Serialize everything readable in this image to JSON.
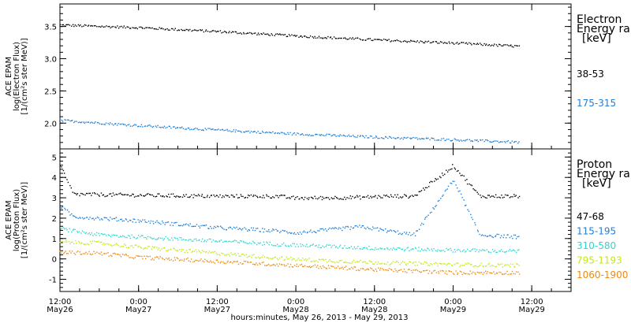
{
  "figure": {
    "x_axis_title": "hours:minutes, May 26, 2013 - May 29, 2013",
    "x_ticks": [
      {
        "hours": 0,
        "time": "12:00",
        "date": "May26"
      },
      {
        "hours": 12,
        "time": "0:00",
        "date": "May27"
      },
      {
        "hours": 24,
        "time": "12:00",
        "date": "May27"
      },
      {
        "hours": 36,
        "time": "0:00",
        "date": "May28"
      },
      {
        "hours": 48,
        "time": "12:00",
        "date": "May28"
      },
      {
        "hours": 60,
        "time": "0:00",
        "date": "May29"
      },
      {
        "hours": 72,
        "time": "12:00",
        "date": "May29"
      }
    ]
  },
  "chart_data": [
    {
      "type": "scatter",
      "ylabel": [
        "ACE EPAM",
        "log(Electron Flux)",
        "[1/(cm²s ster MeV)]"
      ],
      "legend_title": [
        "Electron",
        "Energy ran",
        "[keV]"
      ],
      "ylim": [
        1.6,
        3.85
      ],
      "yticks": [
        2.0,
        2.5,
        3.0,
        3.5
      ],
      "yticks_labels": [
        "2.0",
        "2.5",
        "3.0",
        "3.5"
      ],
      "xlim_hours": [
        0,
        78
      ],
      "series": [
        {
          "name": "38-53",
          "color": "#000000",
          "x_hours": [
            0,
            12,
            24,
            36,
            48,
            60,
            70
          ],
          "y": [
            3.53,
            3.49,
            3.43,
            3.36,
            3.3,
            3.25,
            3.2
          ]
        },
        {
          "name": "175-315",
          "color": "#1f7fd8",
          "x_hours": [
            0,
            12,
            24,
            36,
            48,
            60,
            70
          ],
          "y": [
            2.05,
            1.97,
            1.9,
            1.84,
            1.79,
            1.75,
            1.71
          ]
        }
      ]
    },
    {
      "type": "scatter",
      "ylabel": [
        "ACE EPAM",
        "log(Proton Flux)",
        "[1/(cm²s ster MeV)]"
      ],
      "legend_title": [
        "Proton",
        "Energy ran",
        "[keV]"
      ],
      "ylim": [
        -1.6,
        5.4
      ],
      "yticks": [
        -1,
        0,
        1,
        2,
        3,
        4,
        5
      ],
      "yticks_labels": [
        "-1",
        "0",
        "1",
        "2",
        "3",
        "4",
        "5"
      ],
      "xlim_hours": [
        0,
        78
      ],
      "series": [
        {
          "name": "47-68",
          "color": "#000000",
          "x_hours": [
            0,
            2,
            12,
            24,
            33,
            36,
            46,
            50,
            54,
            60,
            64,
            70
          ],
          "y": [
            4.6,
            3.2,
            3.15,
            3.1,
            3.1,
            3.0,
            3.05,
            3.1,
            3.1,
            4.6,
            3.1,
            3.1
          ]
        },
        {
          "name": "115-195",
          "color": "#1f7fd8",
          "x_hours": [
            0,
            2,
            12,
            24,
            33,
            36,
            46,
            50,
            54,
            60,
            64,
            70
          ],
          "y": [
            2.6,
            2.1,
            1.9,
            1.55,
            1.4,
            1.3,
            1.6,
            1.4,
            1.2,
            3.9,
            1.2,
            1.1
          ]
        },
        {
          "name": "310-580",
          "color": "#2fd6cc",
          "x_hours": [
            0,
            6,
            12,
            24,
            36,
            48,
            60,
            70
          ],
          "y": [
            1.5,
            1.2,
            1.1,
            0.9,
            0.7,
            0.55,
            0.45,
            0.4
          ]
        },
        {
          "name": "795-1193",
          "color": "#c2e81c",
          "x_hours": [
            0,
            6,
            12,
            24,
            36,
            48,
            60,
            70
          ],
          "y": [
            0.85,
            0.8,
            0.6,
            0.3,
            0.0,
            -0.15,
            -0.25,
            -0.3
          ]
        },
        {
          "name": "1060-1900",
          "color": "#ef8a11",
          "x_hours": [
            0,
            6,
            12,
            24,
            36,
            48,
            60,
            70
          ],
          "y": [
            0.35,
            0.3,
            0.1,
            -0.1,
            -0.3,
            -0.5,
            -0.65,
            -0.65
          ]
        }
      ]
    }
  ]
}
